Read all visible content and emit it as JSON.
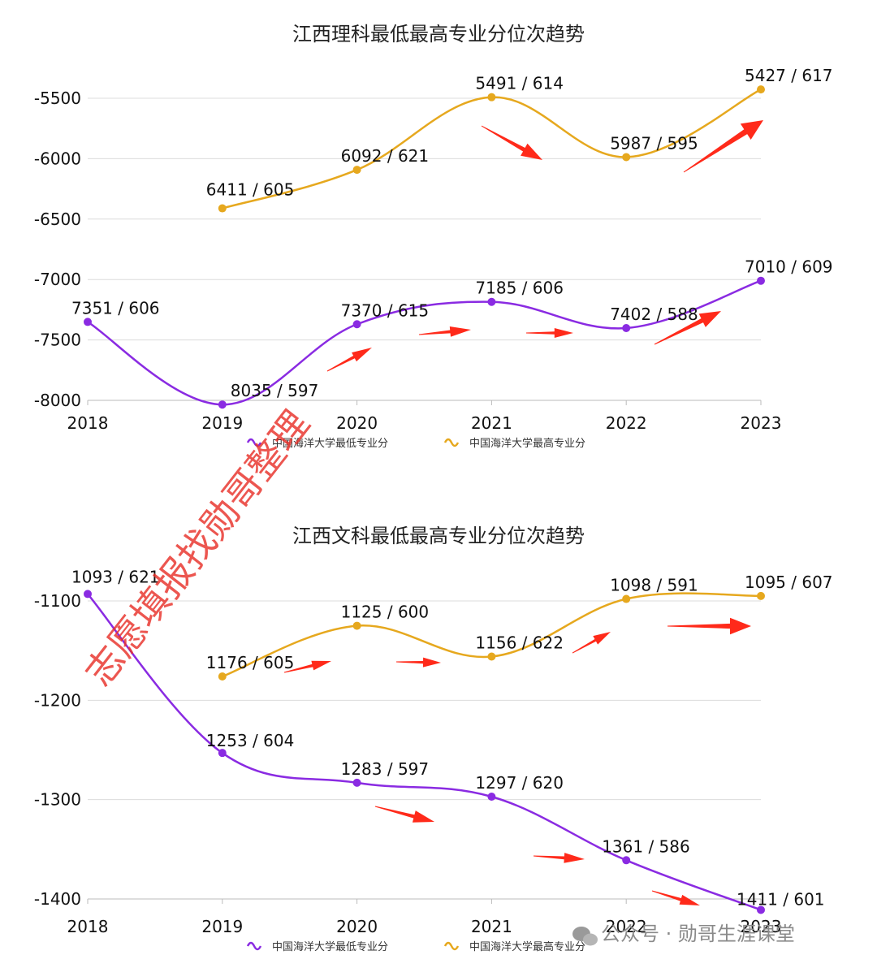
{
  "colors": {
    "min_series": "#8a2be2",
    "max_series": "#e6a81e",
    "grid": "#dcdcdc",
    "arrow": "#ff2a1a"
  },
  "watermark": "志愿填报找勋哥整理",
  "footer": {
    "icon": "wechat-icon",
    "text": "公众号 · 勋哥生涯课堂"
  },
  "chart_data": [
    {
      "type": "line",
      "title": "江西理科最低最高专业分位次趋势",
      "x": [
        "2018",
        "2019",
        "2020",
        "2021",
        "2022",
        "2023"
      ],
      "y_ticks": [
        "-5500",
        "-6000",
        "-6500",
        "-7000",
        "-7500",
        "-8000"
      ],
      "grid": true,
      "legend_position": "bottom",
      "series": [
        {
          "name": "中国海洋大学最低专业分",
          "color": "#8a2be2",
          "values": [
            -7351,
            -8035,
            -7370,
            -7185,
            -7402,
            -7010
          ],
          "labels": [
            "7351 / 606",
            "8035 / 597",
            "7370 / 615",
            "7185 / 606",
            "7402 / 588",
            "7010 / 609"
          ]
        },
        {
          "name": "中国海洋大学最高专业分",
          "color": "#e6a81e",
          "values": [
            null,
            -6411,
            -6092,
            -5491,
            -5987,
            -5427
          ],
          "labels": [
            "",
            "6411 / 605",
            "6092 / 621",
            "5491 / 614",
            "5987 / 595",
            "5427 / 617"
          ]
        }
      ]
    },
    {
      "type": "line",
      "title": "江西文科最低最高专业分位次趋势",
      "x": [
        "2018",
        "2019",
        "2020",
        "2021",
        "2022",
        "2023"
      ],
      "y_ticks": [
        "-1100",
        "-1200",
        "-1300",
        "-1400"
      ],
      "grid": true,
      "legend_position": "bottom",
      "series": [
        {
          "name": "中国海洋大学最低专业分",
          "color": "#8a2be2",
          "values": [
            -1093,
            -1253,
            -1283,
            -1297,
            -1361,
            -1411
          ],
          "labels": [
            "1093 / 621",
            "1253 / 604",
            "1283 / 597",
            "1297 / 620",
            "1361 / 586",
            "1411 / 601"
          ]
        },
        {
          "name": "中国海洋大学最高专业分",
          "color": "#e6a81e",
          "values": [
            null,
            -1176,
            -1125,
            -1156,
            -1098,
            -1095
          ],
          "labels": [
            "",
            "1176 / 605",
            "1125 / 600",
            "1156 / 622",
            "1098 / 591",
            "1095 / 607"
          ]
        }
      ]
    }
  ]
}
